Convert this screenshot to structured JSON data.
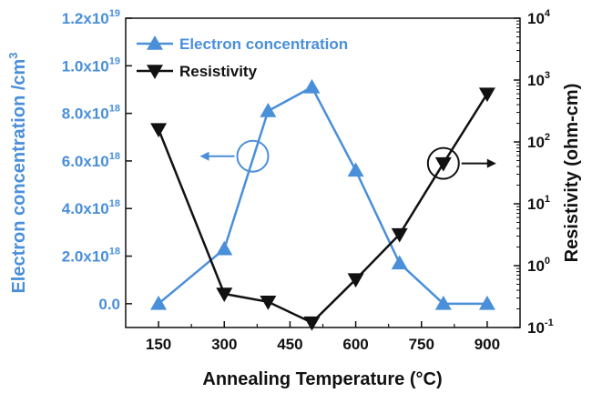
{
  "chart_data": {
    "type": "line",
    "xlabel": "Annealing Temperature (°C)",
    "x_ticks": [
      "150",
      "300",
      "450",
      "600",
      "750",
      "900"
    ],
    "xlim": [
      75,
      975
    ],
    "y_left": {
      "label": "Electron concentration /cm³",
      "lim": [
        -1e+18,
        1.2e+19
      ],
      "ticks": [
        {
          "value": 0.0,
          "base": "0.0",
          "exp": ""
        },
        {
          "value": 2e+18,
          "base": "2.0x10",
          "exp": "18"
        },
        {
          "value": 4e+18,
          "base": "4.0x10",
          "exp": "18"
        },
        {
          "value": 6e+18,
          "base": "6.0x10",
          "exp": "18"
        },
        {
          "value": 8e+18,
          "base": "8.0x10",
          "exp": "18"
        },
        {
          "value": 1e+19,
          "base": "1.0x10",
          "exp": "19"
        },
        {
          "value": 1.2e+19,
          "base": "1.2x10",
          "exp": "19"
        }
      ]
    },
    "y_right": {
      "label": "Resistivity (ohm-cm)",
      "scale": "log",
      "lim": [
        0.1,
        10000
      ],
      "ticks": [
        {
          "value": 0.1,
          "base": "10",
          "exp": "-1"
        },
        {
          "value": 1,
          "base": "10",
          "exp": "0"
        },
        {
          "value": 10,
          "base": "10",
          "exp": "1"
        },
        {
          "value": 100,
          "base": "10",
          "exp": "2"
        },
        {
          "value": 1000,
          "base": "10",
          "exp": "3"
        },
        {
          "value": 10000,
          "base": "10",
          "exp": "4"
        }
      ]
    },
    "series": [
      {
        "name": "Electron concentration",
        "axis": "left",
        "marker": "triangle-up",
        "color": "#4a8fd9",
        "x": [
          150,
          300,
          400,
          500,
          600,
          700,
          800,
          900
        ],
        "y": [
          0.0,
          2.3e+18,
          8.1e+18,
          9.1e+18,
          5.6e+18,
          1.7e+18,
          0.0,
          0.0
        ]
      },
      {
        "name": "Resistivity",
        "axis": "right",
        "marker": "triangle-down",
        "color": "#111111",
        "x": [
          150,
          300,
          400,
          500,
          600,
          700,
          800,
          900
        ],
        "y": [
          160,
          0.35,
          0.26,
          0.12,
          0.6,
          3.2,
          45,
          600
        ]
      }
    ],
    "legend": {
      "placement": "top-left"
    },
    "grid": false,
    "annotations": [
      {
        "type": "circle-with-arrow",
        "direction": "left",
        "near_x": 365,
        "near_y_left": 6.2e+18
      },
      {
        "type": "circle-with-arrow",
        "direction": "right",
        "near_x": 800,
        "near_y_right": 45
      }
    ]
  }
}
